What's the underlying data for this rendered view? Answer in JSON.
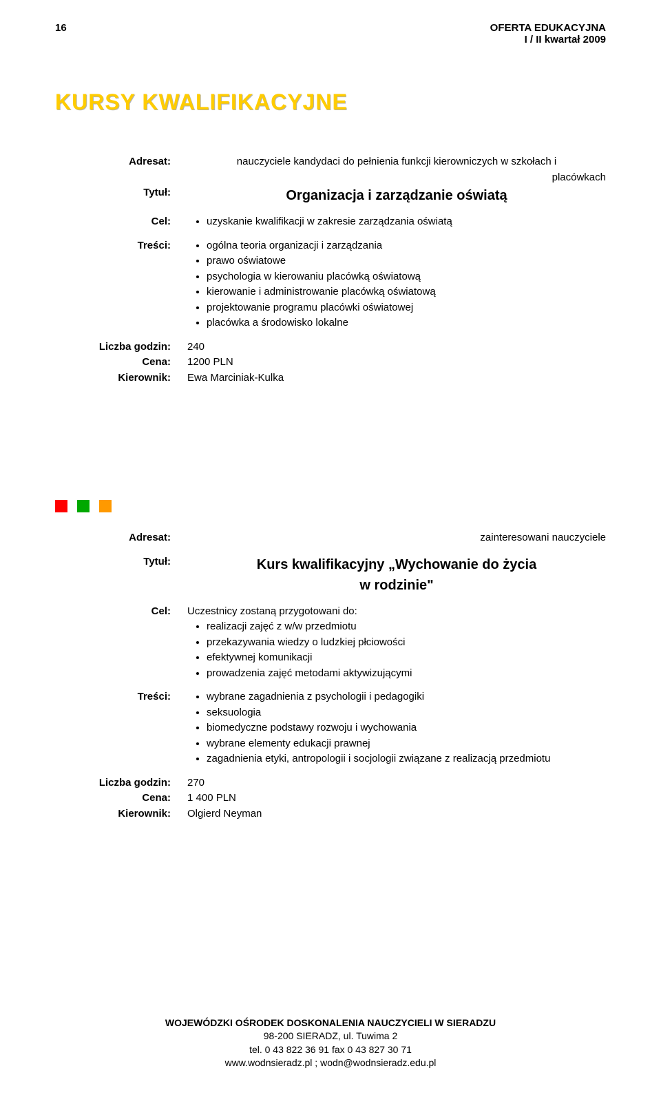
{
  "page_number": "16",
  "header": {
    "line1": "OFERTA EDUKACYJNA",
    "line2": "I / II kwartał 2009"
  },
  "main_heading": "KURSY KWALIFIKACYJNE",
  "colors": {
    "heading": "#ffcc00",
    "square1": "#ff0000",
    "square2": "#00a800",
    "square3": "#ff9900"
  },
  "labels": {
    "adresat": "Adresat:",
    "tytul": "Tytuł:",
    "cel": "Cel:",
    "tresci": "Treści:",
    "liczba_godzin": "Liczba godzin:",
    "cena": "Cena:",
    "kierownik": "Kierownik:"
  },
  "course1": {
    "adresat_line1": "nauczyciele kandydaci do pełnienia funkcji kierowniczych w szkołach i",
    "adresat_line2": "placówkach",
    "tytul": "Organizacja i zarządzanie oświatą",
    "cel_items": [
      "uzyskanie kwalifikacji w zakresie zarządzania oświatą"
    ],
    "tresci_items": [
      "ogólna teoria organizacji i zarządzania",
      "prawo oświatowe",
      "psychologia w kierowaniu placówką oświatową",
      "kierowanie i administrowanie placówką oświatową",
      "projektowanie programu placówki oświatowej",
      "placówka a środowisko lokalne"
    ],
    "liczba_godzin": "240",
    "cena": "1200 PLN",
    "kierownik": "Ewa Marciniak-Kulka"
  },
  "course2": {
    "adresat": "zainteresowani nauczyciele",
    "tytul_line1": "Kurs kwalifikacyjny „Wychowanie do życia",
    "tytul_line2": "w rodzinie\"",
    "cel_intro": "Uczestnicy zostaną przygotowani do:",
    "cel_items": [
      "realizacji zajęć z w/w przedmiotu",
      "przekazywania wiedzy o ludzkiej płciowości",
      "efektywnej komunikacji",
      "prowadzenia zajęć metodami aktywizującymi"
    ],
    "tresci_items": [
      "wybrane zagadnienia z psychologii i pedagogiki",
      "seksuologia",
      "biomedyczne podstawy rozwoju i wychowania",
      "wybrane elementy edukacji prawnej",
      "zagadnienia etyki, antropologii i socjologii związane z realizacją przedmiotu"
    ],
    "liczba_godzin": "270",
    "cena": "1 400 PLN",
    "kierownik": "Olgierd Neyman"
  },
  "footer": {
    "line1": "WOJEWÓDZKI OŚRODEK DOSKONALENIA NAUCZYCIELI W SIERADZU",
    "line2": "98-200 SIERADZ, ul. Tuwima 2",
    "line3": "tel. 0 43 822 36 91 fax 0 43 827 30 71",
    "line4": "www.wodnsieradz.pl ; wodn@wodnsieradz.edu.pl"
  }
}
